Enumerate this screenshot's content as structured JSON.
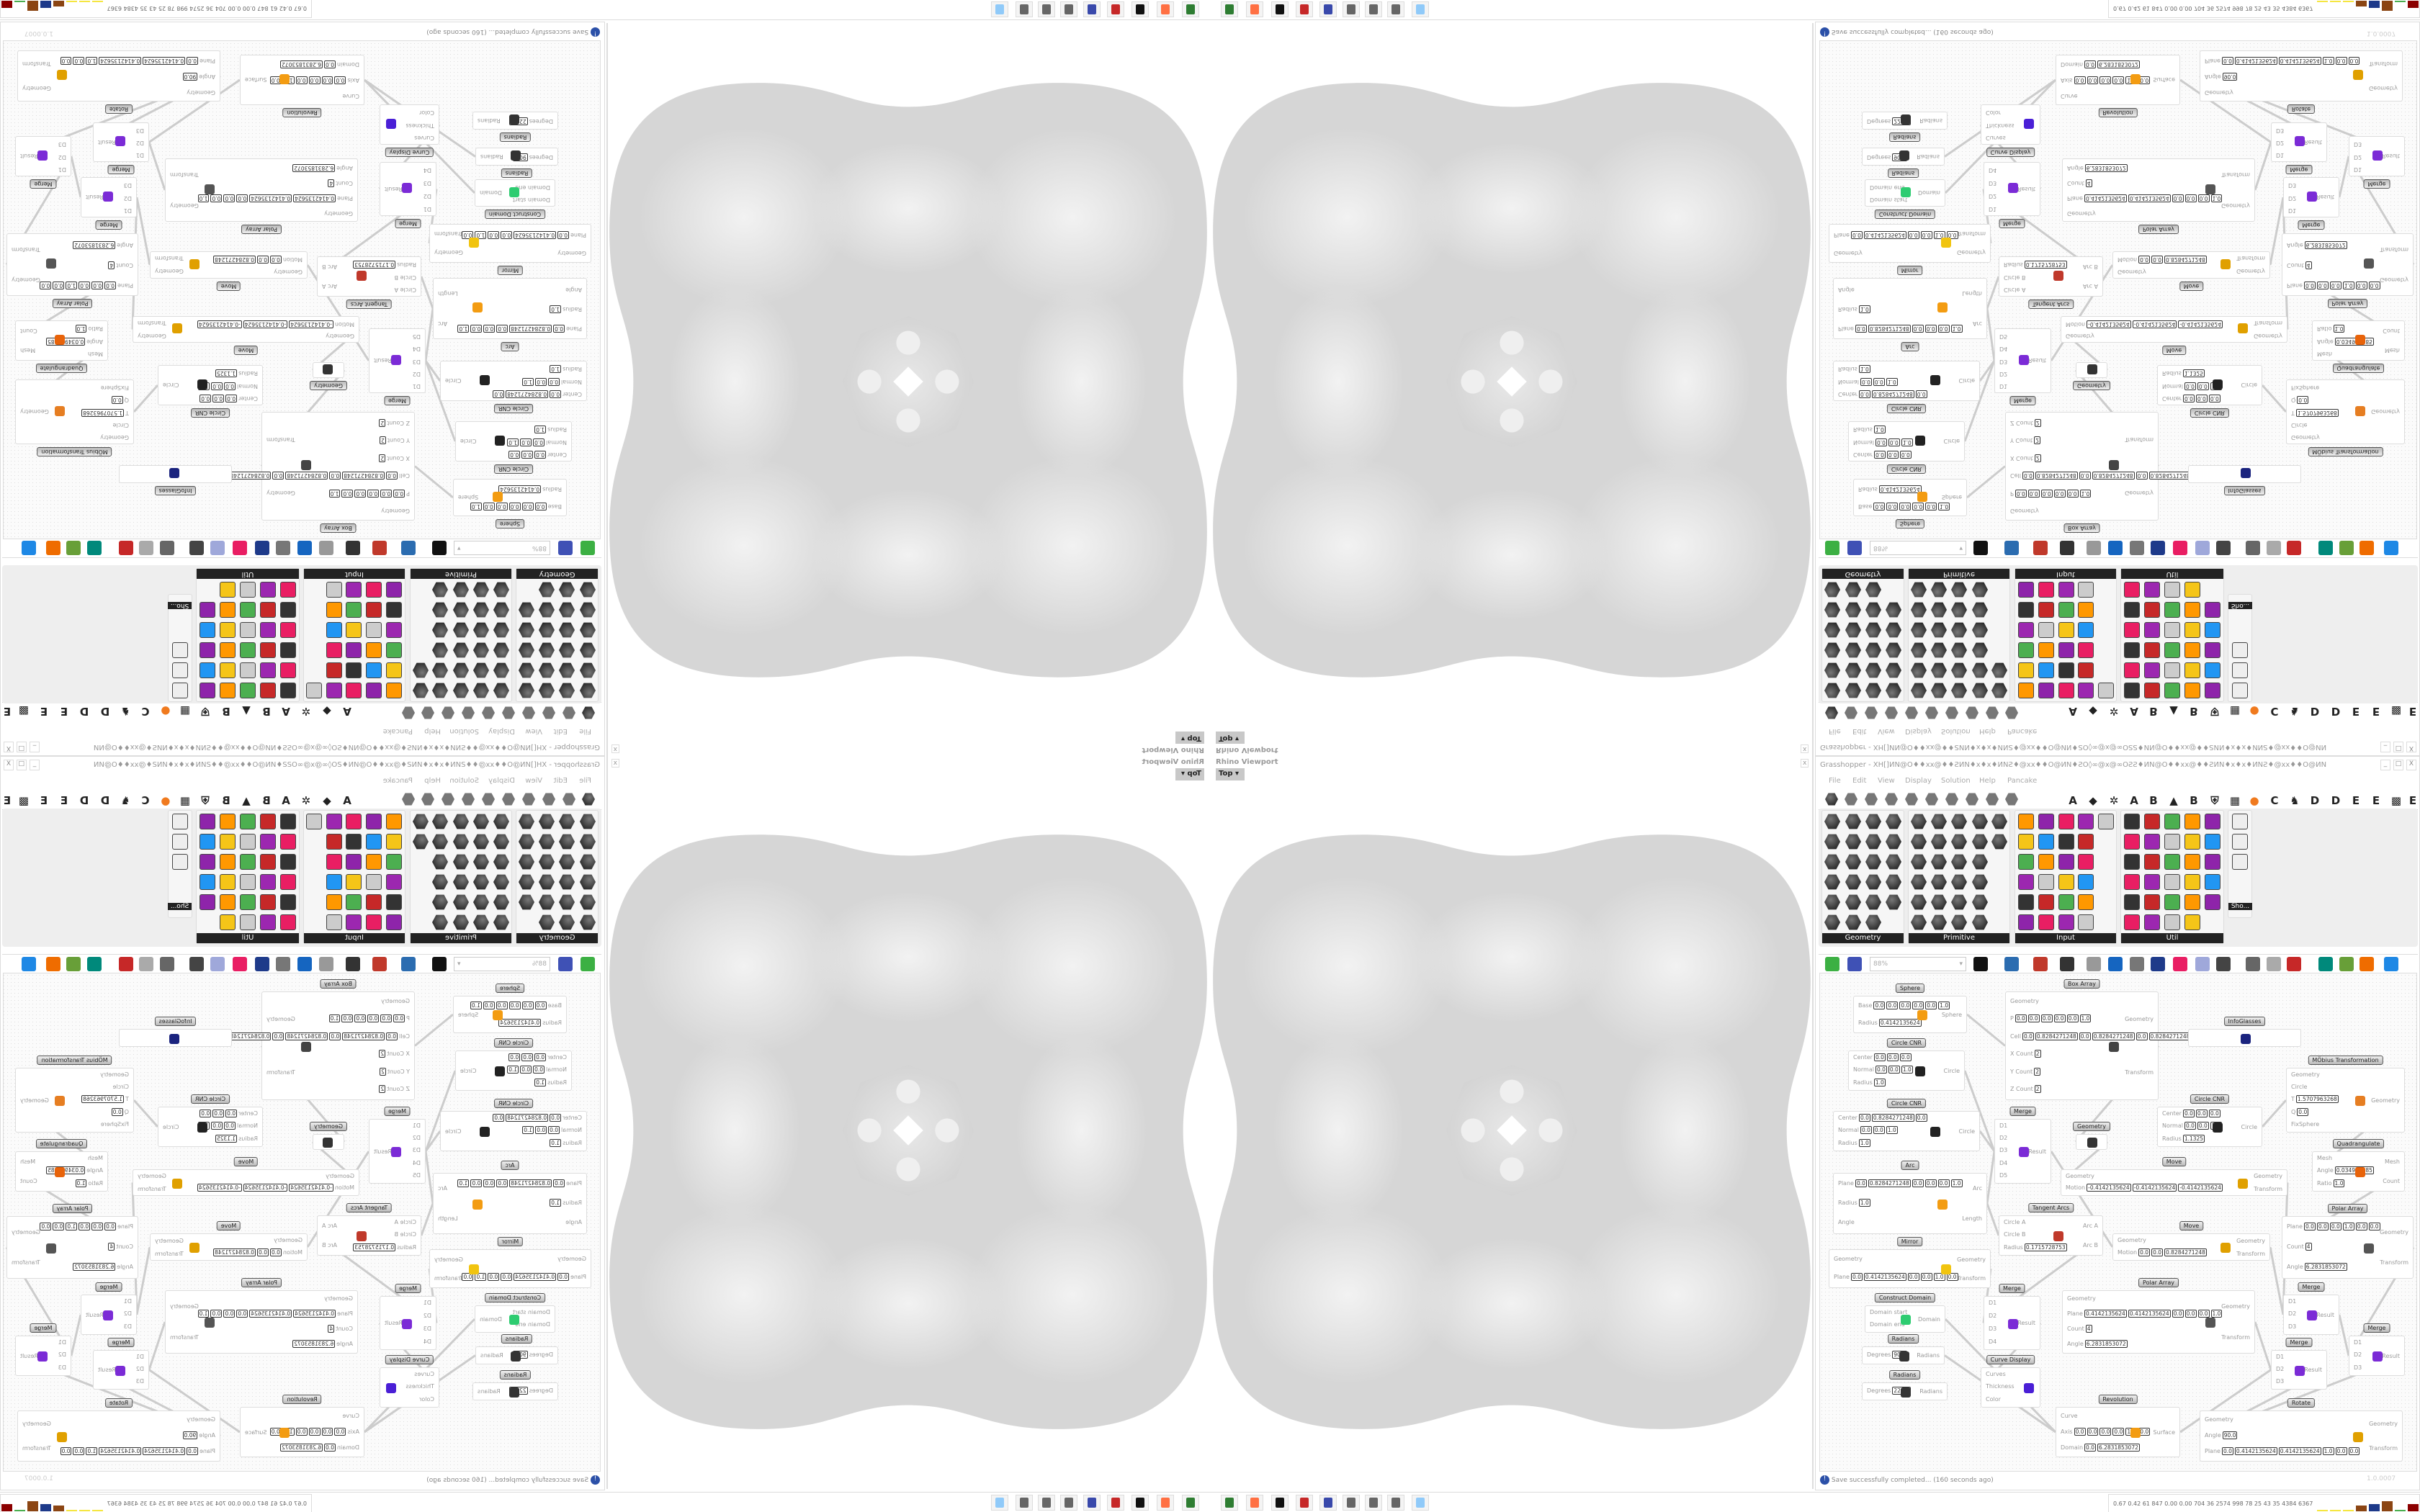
{
  "viewport": {
    "title": "Rhino Viewport",
    "view": "Top",
    "close": "x"
  },
  "grasshopper": {
    "title": "Grasshopper - XH[]ИN@O♦♦xx@♦♦ƧИN♦x♦x♦ИNƧ♦@xx♦♦O@ИN♦ƧO◊∞@x@∞OƧƧ♦ИN@O♦♦xx@♦♦ƧИN♦x♦x♦ИNƧ♦@xx♦♦O@ИN",
    "window_buttons": [
      "_",
      "□",
      "X"
    ],
    "menu": [
      "File",
      "Edit",
      "View",
      "Display",
      "Solution",
      "Help",
      "Pancake"
    ],
    "tab_letters": [
      "A",
      "◆",
      "✲",
      "A",
      "B",
      "▲",
      "B",
      "⛨",
      "▦",
      "●",
      "C",
      "♞",
      "D",
      "D",
      "E",
      "E",
      "▩",
      "E"
    ],
    "tab_icons": [
      "params-tab-icon",
      "maths-tab-icon",
      "sets-tab-icon",
      "vector-tab-icon",
      "curve-tab-icon",
      "surface-tab-icon",
      "mesh-tab-icon",
      "intersect-tab-icon",
      "transform-tab-icon",
      "display-tab-icon"
    ],
    "panels": [
      {
        "label": "Geometry"
      },
      {
        "label": "Primitive"
      },
      {
        "label": "Input"
      },
      {
        "label": "Util"
      }
    ],
    "show_label": "Sho...",
    "zoom": "88%",
    "status": "Save successfully completed... (160 seconds ago)",
    "version": "1.0.0007",
    "colors": {
      "accent_orange": "#f07a1e",
      "panel_bar": "#222222",
      "wire": "#cccccc"
    }
  },
  "components": [
    {
      "title": "Sphere",
      "inputs": [
        {
          "label": "Base",
          "values": [
            "0.0",
            "0.0",
            "0.0",
            "0.0",
            "0.0",
            "1.0"
          ]
        },
        {
          "label": "Radius",
          "values": [
            "0.4142135624"
          ]
        }
      ],
      "outputs": [
        "Sphere"
      ],
      "icon": "#f39c12"
    },
    {
      "title": "Box Array",
      "inputs": [
        {
          "label": "Geometry",
          "values": []
        },
        {
          "label": "P",
          "values": [
            "0.0",
            "0.0",
            "0.0",
            "0.0",
            "0.0",
            "1.0"
          ]
        },
        {
          "label": "Cell",
          "values": [
            "0.0",
            "0.8284271248",
            "0.0",
            "0.8284271248",
            "0.0",
            "0.8284271248"
          ]
        },
        {
          "label": "X Count",
          "values": [
            "2"
          ]
        },
        {
          "label": "Y Count",
          "values": [
            "2"
          ]
        },
        {
          "label": "Z Count",
          "values": [
            "2"
          ]
        }
      ],
      "outputs": [
        "Geometry",
        "Transform"
      ],
      "icon": "#444"
    },
    {
      "title": "Circle CNR",
      "inputs": [
        {
          "label": "Center",
          "values": [
            "0.0",
            "0.0",
            "0.0"
          ]
        },
        {
          "label": "Normal",
          "values": [
            "0.0",
            "0.0",
            "1.0"
          ]
        },
        {
          "label": "Radius",
          "values": [
            "1.0"
          ]
        }
      ],
      "outputs": [
        "Circle"
      ],
      "icon": "#222"
    },
    {
      "title": "Circle CNR",
      "inputs": [
        {
          "label": "Center",
          "values": [
            "0.0",
            "0.8284271248",
            "0.0"
          ]
        },
        {
          "label": "Normal",
          "values": [
            "0.0",
            "0.0",
            "1.0"
          ]
        },
        {
          "label": "Radius",
          "values": [
            "1.0"
          ]
        }
      ],
      "outputs": [
        "Circle"
      ],
      "icon": "#222"
    },
    {
      "title": "Arc",
      "inputs": [
        {
          "label": "Plane",
          "values": [
            "0.0",
            "0.8284271248",
            "0.0",
            "0.0",
            "0.0",
            "1.0"
          ]
        },
        {
          "label": "Radius",
          "values": [
            "1.0"
          ]
        },
        {
          "label": "Angle",
          "values": []
        }
      ],
      "outputs": [
        "Arc",
        "Length"
      ],
      "icon": "#f39c12"
    },
    {
      "title": "Merge",
      "inputs": [
        {
          "label": "D1",
          "values": []
        },
        {
          "label": "D2",
          "values": []
        },
        {
          "label": "D3",
          "values": []
        },
        {
          "label": "D4",
          "values": []
        },
        {
          "label": "D5",
          "values": []
        }
      ],
      "outputs": [
        "Result"
      ],
      "icon": "#7b2bd6"
    },
    {
      "title": "Geometry",
      "inputs": [],
      "outputs": [],
      "icon": "#333"
    },
    {
      "title": "InfoGlasses",
      "inputs": [],
      "outputs": [],
      "icon": "#1a237e"
    },
    {
      "title": "MÖbius Transformation",
      "inputs": [
        {
          "label": "Geometry",
          "values": []
        },
        {
          "label": "Circle",
          "values": []
        },
        {
          "label": "T",
          "values": [
            "1.5707963268"
          ]
        },
        {
          "label": "Q",
          "values": [
            "0.0"
          ]
        },
        {
          "label": "FixSphere",
          "values": []
        }
      ],
      "outputs": [
        "Geometry"
      ],
      "icon": "#e67e22"
    },
    {
      "title": "Circle CNR",
      "inputs": [
        {
          "label": "Center",
          "values": [
            "0.0",
            "0.0",
            "0.0"
          ]
        },
        {
          "label": "Normal",
          "values": [
            "0.0",
            "0.0",
            "1.0"
          ]
        },
        {
          "label": "Radius",
          "values": [
            "1.1325"
          ]
        }
      ],
      "outputs": [
        "Circle"
      ],
      "icon": "#222"
    },
    {
      "title": "Quadrangulate",
      "inputs": [
        {
          "label": "Mesh",
          "values": []
        },
        {
          "label": "Angle",
          "values": [
            "0.034906585"
          ]
        },
        {
          "label": "Ratio",
          "values": [
            "1.0"
          ]
        }
      ],
      "outputs": [
        "Mesh",
        "Count"
      ],
      "icon": "#e8630a"
    },
    {
      "title": "Move",
      "inputs": [
        {
          "label": "Geometry",
          "values": []
        },
        {
          "label": "Motion",
          "values": [
            "-0.4142135624",
            "-0.4142135624",
            "-0.4142135624"
          ]
        }
      ],
      "outputs": [
        "Geometry",
        "Transform"
      ],
      "icon": "#e0a000"
    },
    {
      "title": "Tangent Arcs",
      "inputs": [
        {
          "label": "Circle A",
          "values": []
        },
        {
          "label": "Circle B",
          "values": []
        },
        {
          "label": "Radius",
          "values": [
            "0.1715728753"
          ]
        }
      ],
      "outputs": [
        "Arc A",
        "Arc B"
      ],
      "icon": "#c0392b"
    },
    {
      "title": "Move",
      "inputs": [
        {
          "label": "Geometry",
          "values": []
        },
        {
          "label": "Motion",
          "values": [
            "0.0",
            "0.0",
            "0.8284271248"
          ]
        }
      ],
      "outputs": [
        "Geometry",
        "Transform"
      ],
      "icon": "#e0a000"
    },
    {
      "title": "Polar Array",
      "inputs": [
        {
          "label": "Plane",
          "values": [
            "0.0",
            "0.0",
            "0.0",
            "1.0",
            "0.0",
            "0.0"
          ]
        },
        {
          "label": "Count",
          "values": [
            "4"
          ]
        },
        {
          "label": "Angle",
          "values": [
            "6.2831853072"
          ]
        }
      ],
      "outputs": [
        "Geometry",
        "Transform"
      ],
      "icon": "#555"
    },
    {
      "title": "Mirror",
      "inputs": [
        {
          "label": "Geometry",
          "values": []
        },
        {
          "label": "Plane",
          "values": [
            "0.0",
            "0.4142135624",
            "0.0",
            "0.0",
            "1.0",
            "0.0"
          ]
        }
      ],
      "outputs": [
        "Geometry",
        "Transform"
      ],
      "icon": "#f1c40f"
    },
    {
      "title": "Construct Domain",
      "inputs": [
        {
          "label": "Domain start",
          "values": []
        },
        {
          "label": "Domain end",
          "values": []
        }
      ],
      "outputs": [
        "Domain"
      ],
      "icon": "#2ecc71"
    },
    {
      "title": "Radians",
      "inputs": [
        {
          "label": "Degrees",
          "values": [
            "90.0"
          ]
        }
      ],
      "outputs": [
        "Radians"
      ],
      "icon": "#333"
    },
    {
      "title": "Radians",
      "inputs": [
        {
          "label": "Degrees",
          "values": [
            "225.0"
          ]
        }
      ],
      "outputs": [
        "Radians"
      ],
      "icon": "#333"
    },
    {
      "title": "Merge",
      "inputs": [
        {
          "label": "D1",
          "values": []
        },
        {
          "label": "D2",
          "values": []
        },
        {
          "label": "D3",
          "values": []
        },
        {
          "label": "D4",
          "values": []
        }
      ],
      "outputs": [
        "Result"
      ],
      "icon": "#7b2bd6"
    },
    {
      "title": "Curve Display",
      "inputs": [
        {
          "label": "Curves",
          "values": []
        },
        {
          "label": "Thickness",
          "values": []
        },
        {
          "label": "Color",
          "values": []
        }
      ],
      "outputs": [],
      "icon": "#4a1fd6"
    },
    {
      "title": "Polar Array",
      "inputs": [
        {
          "label": "Geometry",
          "values": []
        },
        {
          "label": "Plane",
          "values": [
            "0.4142135624",
            "0.4142135624",
            "0.0",
            "0.0",
            "0.0",
            "1.0"
          ]
        },
        {
          "label": "Count",
          "values": [
            "4"
          ]
        },
        {
          "label": "Angle",
          "values": [
            "6.2831853072"
          ]
        }
      ],
      "outputs": [
        "Geometry",
        "Transform"
      ],
      "icon": "#555"
    },
    {
      "title": "Revolution",
      "inputs": [
        {
          "label": "Curve",
          "values": []
        },
        {
          "label": "Axis",
          "values": [
            "0.0",
            "0.0",
            "0.0",
            "0.0",
            "1.0",
            "0.0"
          ]
        },
        {
          "label": "Domain",
          "values": [
            "0.0",
            "6.2831853072"
          ]
        }
      ],
      "outputs": [
        "Surface"
      ],
      "icon": "#f39c12"
    },
    {
      "title": "Merge",
      "inputs": [
        {
          "label": "D1",
          "values": []
        },
        {
          "label": "D2",
          "values": []
        },
        {
          "label": "D3",
          "values": []
        }
      ],
      "outputs": [
        "Result"
      ],
      "icon": "#7b2bd6"
    },
    {
      "title": "Merge",
      "inputs": [
        {
          "label": "D1",
          "values": []
        },
        {
          "label": "D2",
          "values": []
        },
        {
          "label": "D3",
          "values": []
        }
      ],
      "outputs": [
        "Result"
      ],
      "icon": "#7b2bd6"
    },
    {
      "title": "Merge",
      "inputs": [
        {
          "label": "D1",
          "values": []
        },
        {
          "label": "D2",
          "values": []
        },
        {
          "label": "D3",
          "values": []
        }
      ],
      "outputs": [
        "Result"
      ],
      "icon": "#7b2bd6"
    },
    {
      "title": "Rotate",
      "inputs": [
        {
          "label": "Geometry",
          "values": []
        },
        {
          "label": "Angle",
          "values": [
            "90.0"
          ]
        },
        {
          "label": "Plane",
          "values": [
            "0.0",
            "0.4142135624",
            "0.4142135624",
            "1.0",
            "0.0",
            "0.0"
          ]
        }
      ],
      "outputs": [
        "Geometry",
        "Transform"
      ],
      "icon": "#e0a000"
    }
  ],
  "taskbar": {
    "apps": [
      "grasshopper-808-icon",
      "firefox-icon",
      "wolf-icon",
      "red-gear-icon",
      "floppy-64-icon",
      "grasshopper-icon",
      "grasshopper-icon",
      "grasshopper-icon",
      "calculator-icon"
    ],
    "tray_text": "0.67 0.42  61  847 0.00 0.00 704  36 2574 998  78  25  43  35 4384 6367"
  }
}
